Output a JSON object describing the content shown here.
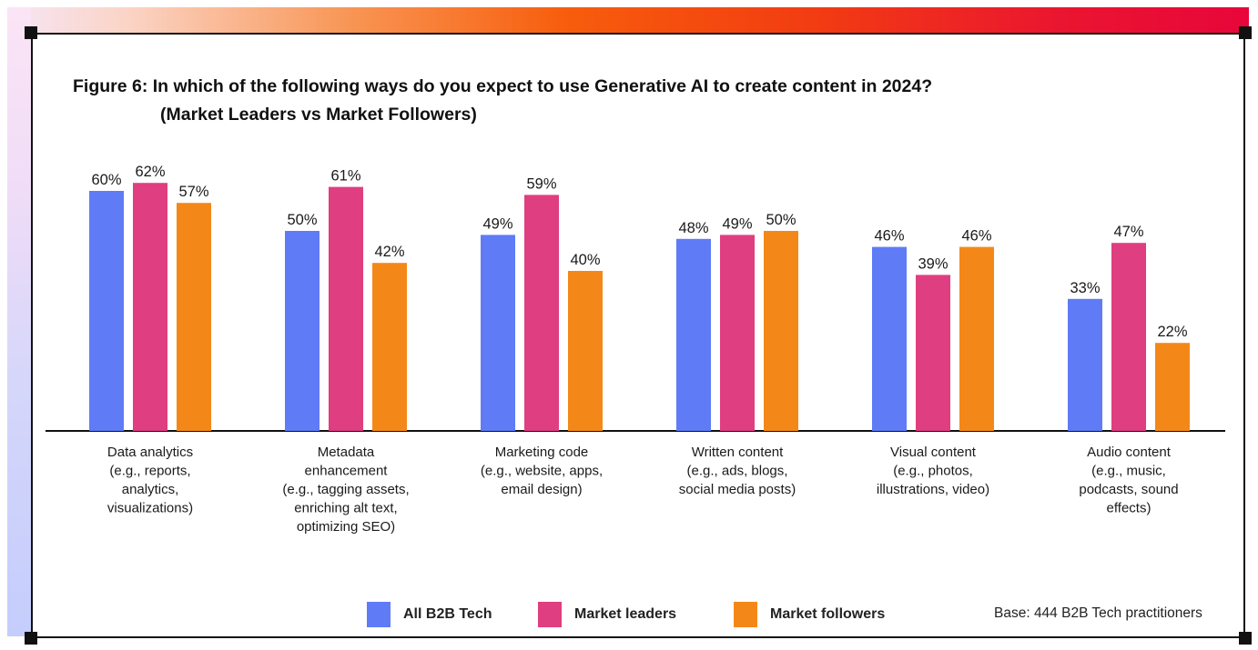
{
  "title": {
    "line1": "Figure 6: In which of the following ways do you expect to use Generative AI to create content in 2024?",
    "line2": "(Market Leaders vs Market Followers)"
  },
  "colors": {
    "all": "#5f7bf6",
    "leaders": "#df3e80",
    "followers": "#f38819"
  },
  "chart_data": {
    "type": "bar",
    "categories": [
      [
        "Data analytics",
        "(e.g., reports,",
        "analytics,",
        "visualizations)"
      ],
      [
        "Metadata",
        "enhancement",
        "(e.g., tagging assets,",
        "enriching alt text,",
        "optimizing SEO)"
      ],
      [
        "Marketing code",
        "(e.g., website, apps,",
        "email design)"
      ],
      [
        "Written content",
        "(e.g., ads, blogs,",
        "social media posts)"
      ],
      [
        "Visual content",
        "(e.g., photos,",
        "illustrations, video)"
      ],
      [
        "Audio content",
        "(e.g., music,",
        "podcasts, sound",
        "effects)"
      ]
    ],
    "series": [
      {
        "name": "All B2B Tech",
        "color_key": "all",
        "values": [
          60,
          50,
          49,
          48,
          46,
          33
        ]
      },
      {
        "name": "Market leaders",
        "color_key": "leaders",
        "values": [
          62,
          61,
          59,
          49,
          39,
          47
        ]
      },
      {
        "name": "Market followers",
        "color_key": "followers",
        "values": [
          57,
          42,
          40,
          50,
          46,
          22
        ]
      }
    ],
    "value_suffix": "%",
    "ylim": [
      0,
      65
    ],
    "legend_position": "bottom",
    "grid": false
  },
  "legend": {
    "all": "All B2B Tech",
    "leaders": "Market leaders",
    "followers": "Market followers"
  },
  "base_note": "Base: 444 B2B Tech practitioners"
}
